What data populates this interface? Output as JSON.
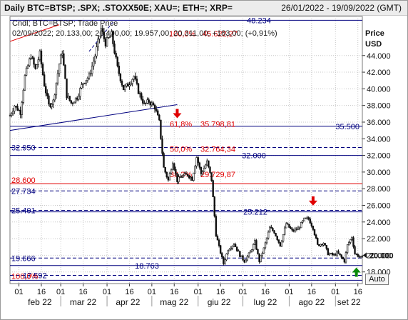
{
  "window": {
    "title": "Daily BTC=BTSP; .SPX; .STOXX50E; XAU=; ETH=; XRP=",
    "date_range": "26/01/2022 - 19/09/2022 (GMT)"
  },
  "legend": {
    "series_label": "Cndl; BTC=BTSP; Trade Price",
    "ohlc_line": "02/09/2022; 20.133,00; 20.400,00; 19.957,00; 20.311,00; +183,00; (+0,91%)"
  },
  "controls": {
    "auto_label": "Auto"
  },
  "colors": {
    "blue": "#00007f",
    "red": "#e00000",
    "green": "#0a8a0a",
    "grid": "#c8c8c8",
    "candle": "#111111"
  },
  "chart_data": {
    "type": "candlestick",
    "title": "Daily BTC=BTSP; .SPX; .STOXX50E; XAU=; ETH=; XRP=",
    "ylabel": "Price USD",
    "y_axis_title": [
      "Price",
      "USD"
    ],
    "ylim": [
      16600,
      48700
    ],
    "y_ticks": [
      "18.000",
      "20.000",
      "22.000",
      "24.000",
      "26.000",
      "28.000",
      "30.000",
      "32.000",
      "34.000",
      "36.000",
      "38.000",
      "40.000",
      "42.000",
      "44.000"
    ],
    "y_tick_values": [
      18000,
      20000,
      22000,
      24000,
      26000,
      28000,
      30000,
      32000,
      34000,
      36000,
      38000,
      40000,
      42000,
      44000
    ],
    "current_price": "20.000",
    "current_price_value": 20000,
    "x_start": "2022-01-26",
    "x_end": "2022-09-19",
    "x_ticks": [
      {
        "label": "01",
        "date": "2022-02-01"
      },
      {
        "label": "16",
        "date": "2022-02-16"
      },
      {
        "label": "01",
        "date": "2022-03-01"
      },
      {
        "label": "16",
        "date": "2022-03-16"
      },
      {
        "label": "01",
        "date": "2022-04-01"
      },
      {
        "label": "16",
        "date": "2022-04-16"
      },
      {
        "label": "01",
        "date": "2022-05-01"
      },
      {
        "label": "16",
        "date": "2022-05-16"
      },
      {
        "label": "01",
        "date": "2022-06-01"
      },
      {
        "label": "16",
        "date": "2022-06-16"
      },
      {
        "label": "01",
        "date": "2022-07-01"
      },
      {
        "label": "16",
        "date": "2022-07-16"
      },
      {
        "label": "01",
        "date": "2022-08-01"
      },
      {
        "label": "16",
        "date": "2022-08-16"
      },
      {
        "label": "01",
        "date": "2022-09-01"
      },
      {
        "label": "16",
        "date": "2022-09-16"
      }
    ],
    "x_months": [
      {
        "label": "feb 22",
        "date": "2022-02-15"
      },
      {
        "label": "mar 22",
        "date": "2022-03-16"
      },
      {
        "label": "apr 22",
        "date": "2022-04-15"
      },
      {
        "label": "mag 22",
        "date": "2022-05-16"
      },
      {
        "label": "giu 22",
        "date": "2022-06-15"
      },
      {
        "label": "lug 22",
        "date": "2022-07-16"
      },
      {
        "label": "ago 22",
        "date": "2022-08-16"
      },
      {
        "label": "set 22",
        "date": "2022-09-10"
      }
    ],
    "price_path": [
      [
        "2022-01-26",
        36800
      ],
      [
        "2022-01-29",
        38000
      ],
      [
        "2022-02-02",
        37200
      ],
      [
        "2022-02-05",
        41500
      ],
      [
        "2022-02-09",
        44000
      ],
      [
        "2022-02-12",
        42300
      ],
      [
        "2022-02-15",
        44200
      ],
      [
        "2022-02-18",
        40500
      ],
      [
        "2022-02-21",
        38000
      ],
      [
        "2022-02-24",
        38500
      ],
      [
        "2022-02-28",
        43000
      ],
      [
        "2022-03-02",
        44500
      ],
      [
        "2022-03-05",
        39200
      ],
      [
        "2022-03-08",
        38300
      ],
      [
        "2022-03-12",
        39000
      ],
      [
        "2022-03-16",
        40800
      ],
      [
        "2022-03-20",
        41500
      ],
      [
        "2022-03-24",
        44000
      ],
      [
        "2022-03-28",
        47200
      ],
      [
        "2022-03-31",
        45500
      ],
      [
        "2022-04-04",
        46500
      ],
      [
        "2022-04-08",
        42500
      ],
      [
        "2022-04-12",
        40000
      ],
      [
        "2022-04-15",
        40500
      ],
      [
        "2022-04-19",
        41500
      ],
      [
        "2022-04-22",
        39700
      ],
      [
        "2022-04-26",
        38100
      ],
      [
        "2022-04-29",
        38500
      ],
      [
        "2022-05-03",
        37800
      ],
      [
        "2022-05-06",
        36000
      ],
      [
        "2022-05-09",
        30500
      ],
      [
        "2022-05-12",
        29000
      ],
      [
        "2022-05-15",
        31300
      ],
      [
        "2022-05-18",
        29000
      ],
      [
        "2022-05-21",
        29500
      ],
      [
        "2022-05-25",
        29700
      ],
      [
        "2022-05-28",
        29200
      ],
      [
        "2022-05-31",
        31800
      ],
      [
        "2022-06-03",
        29800
      ],
      [
        "2022-06-07",
        31200
      ],
      [
        "2022-06-10",
        29100
      ],
      [
        "2022-06-13",
        22500
      ],
      [
        "2022-06-15",
        21000
      ],
      [
        "2022-06-18",
        19000
      ],
      [
        "2022-06-21",
        20700
      ],
      [
        "2022-06-25",
        21400
      ],
      [
        "2022-06-29",
        20000
      ],
      [
        "2022-07-02",
        19300
      ],
      [
        "2022-07-06",
        20400
      ],
      [
        "2022-07-09",
        21600
      ],
      [
        "2022-07-12",
        19300
      ],
      [
        "2022-07-15",
        20800
      ],
      [
        "2022-07-19",
        23300
      ],
      [
        "2022-07-22",
        22800
      ],
      [
        "2022-07-26",
        21200
      ],
      [
        "2022-07-30",
        23800
      ],
      [
        "2022-08-03",
        22900
      ],
      [
        "2022-08-07",
        23200
      ],
      [
        "2022-08-11",
        24300
      ],
      [
        "2022-08-14",
        24400
      ],
      [
        "2022-08-17",
        23300
      ],
      [
        "2022-08-20",
        21200
      ],
      [
        "2022-08-24",
        21500
      ],
      [
        "2022-08-27",
        20200
      ],
      [
        "2022-08-31",
        20000
      ],
      [
        "2022-09-02",
        20311
      ],
      [
        "2022-09-04",
        19957
      ],
      [
        "2022-09-07",
        19300
      ],
      [
        "2022-09-09",
        21200
      ],
      [
        "2022-09-12",
        22200
      ],
      [
        "2022-09-14",
        20200
      ],
      [
        "2022-09-19",
        19600
      ]
    ],
    "horizontal_levels": [
      {
        "name": "top-level",
        "label": "48.234",
        "value": 48234,
        "style": "solid",
        "color": "blue"
      },
      {
        "name": "level-35500",
        "label": "35.500",
        "value": 35500,
        "style": "solid",
        "color": "blue"
      },
      {
        "name": "level-32950",
        "label": "32.950",
        "value": 32950,
        "style": "dashed",
        "color": "blue"
      },
      {
        "name": "level-32000",
        "label": "32.000",
        "value": 32000,
        "style": "solid",
        "color": "blue"
      },
      {
        "name": "level-28600",
        "label": "28.600",
        "value": 28600,
        "style": "solid",
        "color": "red"
      },
      {
        "name": "level-27734",
        "label": "27.734",
        "value": 27734,
        "style": "dashed",
        "color": "blue"
      },
      {
        "name": "level-25401",
        "label": "25.401",
        "value": 25401,
        "style": "dashed",
        "color": "blue"
      },
      {
        "name": "level-25212",
        "label": "25.212",
        "value": 25212,
        "style": "solid",
        "color": "blue"
      },
      {
        "name": "level-19666",
        "label": "19.666",
        "value": 19666,
        "style": "dashed",
        "color": "blue"
      },
      {
        "name": "level-18763",
        "label": "18.763",
        "value": 18763,
        "style": "solid",
        "color": "blue"
      },
      {
        "name": "level-17592",
        "label": "17.592",
        "value": 17592,
        "style": "dashed",
        "color": "blue"
      },
      {
        "name": "level-bottom",
        "label": "",
        "value": 17000,
        "style": "solid",
        "color": "blue"
      }
    ],
    "fibonacci_levels": [
      {
        "label": "100,0%",
        "price": "45.622,27",
        "value": 45622.27
      },
      {
        "label": "61,8%",
        "price": "35.798,81",
        "value": 35798.81
      },
      {
        "label": "50,0%",
        "price": "32.764,34",
        "value": 32764.34
      },
      {
        "label": "38,2%",
        "price": "29.729,87",
        "value": 29729.87
      },
      {
        "label": "100,0%",
        "price": "",
        "value": 17000
      }
    ],
    "trendlines": [
      {
        "name": "red-trendline",
        "from": [
          "2022-01-26",
          45700
        ],
        "to": [
          "2022-02-28",
          47700
        ],
        "color": "red"
      },
      {
        "name": "dashed-resistance",
        "from": [
          "2022-03-20",
          44500
        ],
        "to": [
          "2022-04-06",
          48234
        ],
        "color": "blue",
        "style": "dashed"
      },
      {
        "name": "support-trendline",
        "from": [
          "2022-01-26",
          35000
        ],
        "to": [
          "2022-05-18",
          38100
        ],
        "color": "blue"
      }
    ],
    "annotations": [
      {
        "name": "down-arrow-1",
        "date": "2022-05-18",
        "value": 36900,
        "direction": "down",
        "color": "red"
      },
      {
        "name": "down-arrow-2",
        "date": "2022-08-17",
        "value": 26400,
        "direction": "down",
        "color": "red"
      },
      {
        "name": "up-arrow",
        "date": "2022-09-15",
        "value": 18100,
        "direction": "up",
        "color": "green"
      }
    ]
  }
}
